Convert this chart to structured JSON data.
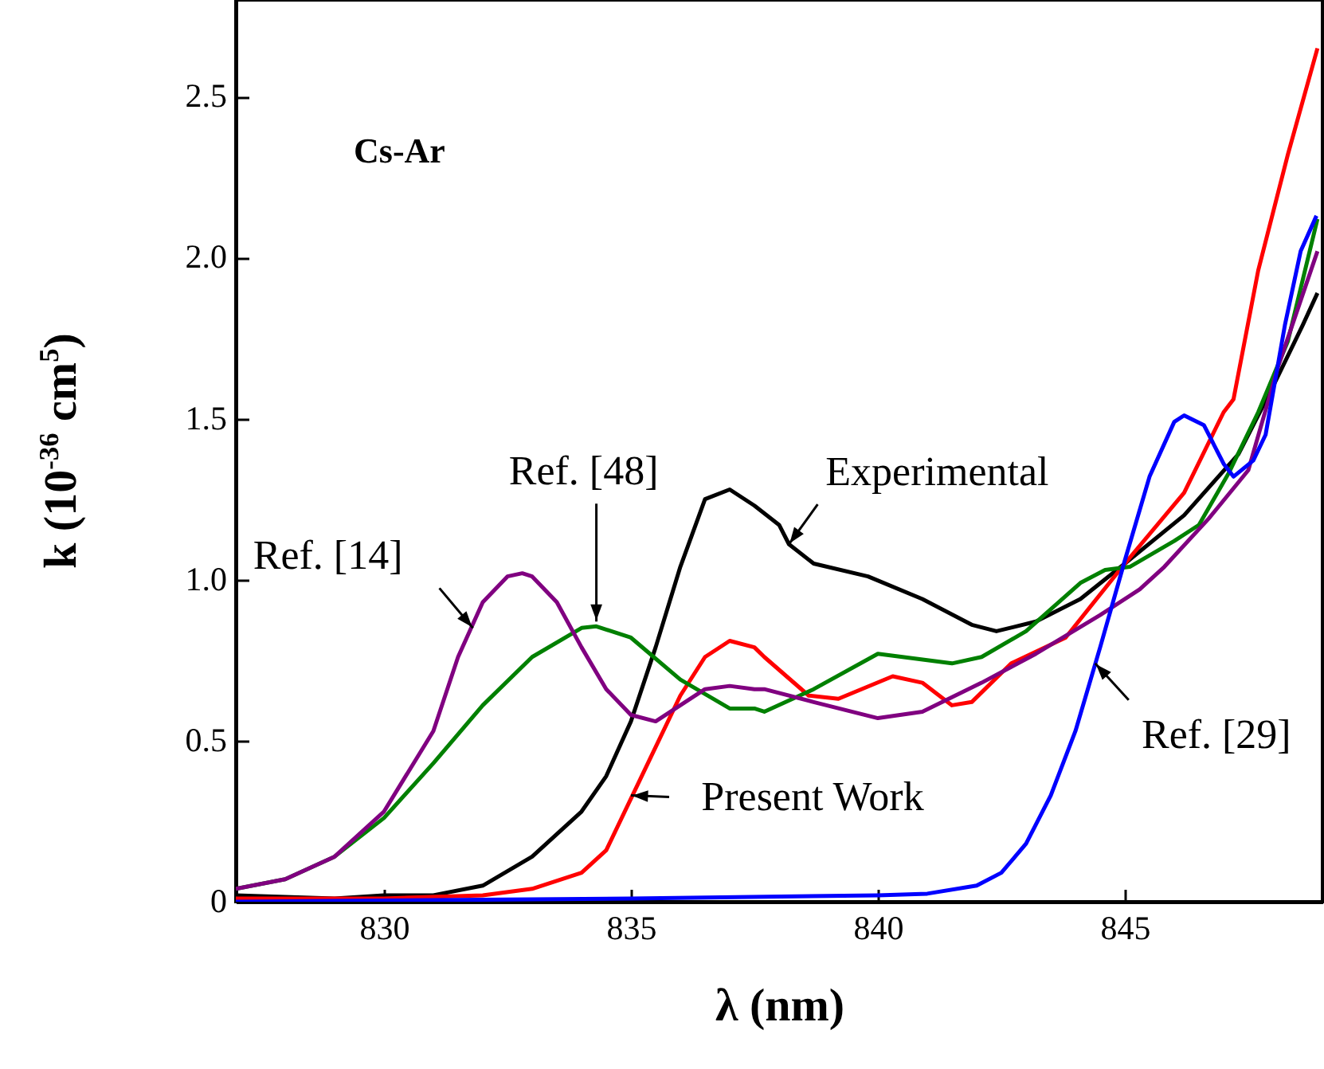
{
  "chart_data": {
    "type": "line",
    "xlabel": "λ (nm)",
    "ylabel": "k (10$^{-36}$ cm$^{5}$)",
    "xlim": [
      827,
      849
    ],
    "ylim": [
      0,
      2.8
    ],
    "xticks": [
      830,
      835,
      840,
      845
    ],
    "yticks": [
      0,
      {
        "value": 0.5,
        "label": "0.5"
      },
      {
        "value": 1,
        "label": "1.0"
      },
      {
        "value": 1.5,
        "label": "1.5"
      },
      {
        "value": 2,
        "label": "2.0"
      },
      {
        "value": 2.5,
        "label": "2.5"
      }
    ],
    "grid": false,
    "line_style": "solid",
    "marker": "none",
    "series": [
      {
        "color": "#000000",
        "x": [
          827,
          829,
          830,
          831,
          832,
          833,
          834,
          834.5,
          835,
          835.5,
          836,
          836.5,
          837,
          837.5,
          838,
          838.2,
          838.7,
          839.8,
          840.9,
          841.9,
          842.4,
          843.2,
          844.1,
          845,
          846.2,
          847.3,
          848,
          848.6,
          848.9
        ],
        "values": [
          0.02,
          0.01,
          0.02,
          0.02,
          0.05,
          0.14,
          0.28,
          0.39,
          0.56,
          0.79,
          1.04,
          1.25,
          1.28,
          1.23,
          1.17,
          1.11,
          1.05,
          1.01,
          0.94,
          0.86,
          0.84,
          0.87,
          0.94,
          1.05,
          1.2,
          1.39,
          1.6,
          1.79,
          1.89
        ]
      },
      {
        "color": "#ff0000",
        "x": [
          827,
          830,
          832,
          833,
          834,
          834.5,
          835,
          835.5,
          836,
          836.5,
          837,
          837.5,
          837.7,
          838.6,
          839.2,
          840.3,
          840.9,
          841.5,
          841.9,
          842.7,
          843.8,
          845,
          846.2,
          847,
          847.2,
          847.7,
          848.3,
          848.9
        ],
        "values": [
          0.01,
          0.01,
          0.02,
          0.04,
          0.09,
          0.16,
          0.32,
          0.48,
          0.64,
          0.76,
          0.81,
          0.79,
          0.76,
          0.64,
          0.63,
          0.7,
          0.68,
          0.61,
          0.62,
          0.74,
          0.82,
          1.05,
          1.27,
          1.52,
          1.56,
          1.96,
          2.32,
          2.65
        ]
      },
      {
        "color": "#008000",
        "x": [
          827,
          828,
          829,
          830,
          831,
          832,
          833,
          834,
          834.3,
          835,
          836,
          837,
          837.5,
          837.7,
          838.7,
          840,
          841.5,
          842.1,
          843,
          844.1,
          844.6,
          845.1,
          846,
          846.5,
          847.1,
          847.7,
          848.3,
          848.9
        ],
        "values": [
          0.04,
          0.07,
          0.14,
          0.26,
          0.43,
          0.61,
          0.76,
          0.85,
          0.855,
          0.82,
          0.69,
          0.6,
          0.6,
          0.59,
          0.66,
          0.77,
          0.74,
          0.76,
          0.84,
          0.99,
          1.03,
          1.04,
          1.12,
          1.17,
          1.33,
          1.52,
          1.74,
          2.12
        ]
      },
      {
        "color": "#800080",
        "x": [
          827,
          828,
          829,
          830,
          831,
          831.5,
          832,
          832.5,
          832.8,
          833,
          833.5,
          834,
          834.5,
          835,
          835.5,
          836,
          836.5,
          837,
          837.5,
          837.7,
          838.7,
          840,
          840.9,
          842.1,
          843.2,
          844.5,
          845.3,
          845.8,
          846.7,
          847.5,
          848.1,
          848.9
        ],
        "values": [
          0.04,
          0.07,
          0.14,
          0.28,
          0.53,
          0.76,
          0.93,
          1.01,
          1.02,
          1.01,
          0.93,
          0.79,
          0.66,
          0.58,
          0.56,
          0.61,
          0.66,
          0.67,
          0.66,
          0.66,
          0.62,
          0.57,
          0.59,
          0.68,
          0.77,
          0.89,
          0.97,
          1.04,
          1.19,
          1.34,
          1.66,
          2.02
        ]
      },
      {
        "color": "#0000ff",
        "x": [
          827,
          835,
          840,
          841,
          842,
          842.5,
          843,
          843.5,
          844,
          844.5,
          845,
          845.5,
          846,
          846.2,
          846.6,
          847,
          847.2,
          847.6,
          847.85,
          848.24,
          848.56,
          848.88
        ],
        "values": [
          0,
          0.01,
          0.02,
          0.025,
          0.05,
          0.09,
          0.18,
          0.33,
          0.53,
          0.79,
          1.06,
          1.32,
          1.49,
          1.51,
          1.48,
          1.36,
          1.32,
          1.37,
          1.45,
          1.79,
          2.02,
          2.13
        ]
      }
    ],
    "annotations": [
      "Cs-Ar",
      {
        "text": "Experimental",
        "x": 838.2,
        "y": 1.11
      },
      {
        "text": "Ref. [48]",
        "x": 834.3,
        "y": 0.87
      },
      {
        "text": "Ref. [14]",
        "x": 831.8,
        "y": 0.85
      },
      {
        "text": "Present Work",
        "x": 835,
        "y": 0.33
      },
      {
        "text": "Ref. [29]",
        "x": 844.4,
        "y": 0.74
      }
    ]
  }
}
